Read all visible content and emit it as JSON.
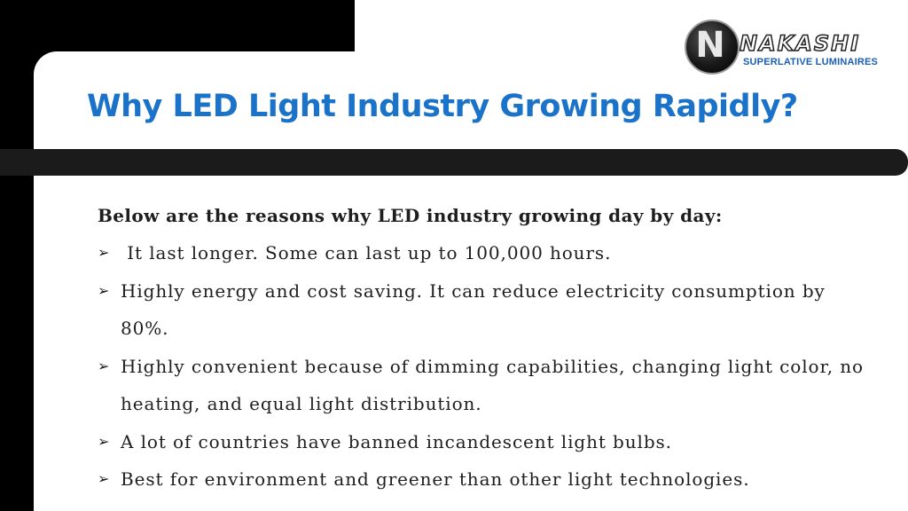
{
  "logo": {
    "mark": "N",
    "name": "NAKASHI",
    "tagline": "SUPERLATIVE LUMINAIRES"
  },
  "title": "Why LED Light Industry Growing Rapidly?",
  "intro": "Below are the reasons why LED industry growing day by day:",
  "bullet_glyph": "➢",
  "items": [
    " It last longer. Some can last up to 100,000 hours.",
    "Highly energy and cost saving. It can reduce electricity consumption by 80%.",
    "Highly convenient because of dimming capabilities, changing light color, no heating, and equal light distribution.",
    "A lot of countries have banned incandescent light bulbs.",
    "Best for environment and greener than other light technologies."
  ],
  "colors": {
    "title": "#1a73c8",
    "background": "#000000",
    "card": "#ffffff",
    "divider": "#1b1b1b"
  }
}
